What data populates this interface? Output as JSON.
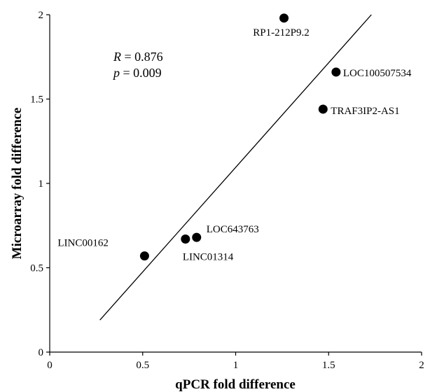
{
  "chart_data": {
    "type": "scatter",
    "xlabel": "qPCR fold difference",
    "ylabel": "Microarray fold difference",
    "xlim": [
      0,
      2
    ],
    "ylim": [
      0,
      2
    ],
    "xticks": [
      "0",
      "0.5",
      "1",
      "1.5",
      "2"
    ],
    "yticks": [
      "0",
      "0.5",
      "1",
      "1.5",
      "2"
    ],
    "grid": false,
    "points": [
      {
        "label": "RP1-212P9.2",
        "x": 1.26,
        "y": 1.98
      },
      {
        "label": "LOC100507534",
        "x": 1.54,
        "y": 1.66
      },
      {
        "label": "TRAF3IP2-AS1",
        "x": 1.47,
        "y": 1.44
      },
      {
        "label": "LOC643763",
        "x": 0.79,
        "y": 0.68
      },
      {
        "label": "LINC01314",
        "x": 0.73,
        "y": 0.67
      },
      {
        "label": "LINC00162",
        "x": 0.51,
        "y": 0.57
      }
    ],
    "fit_line": {
      "x1": 0.27,
      "y1": 0.19,
      "x2": 1.73,
      "y2": 2.0
    },
    "annotations": {
      "r_symbol": "R",
      "r_value": " = 0.876",
      "p_symbol": "p",
      "p_value": " = 0.009"
    }
  }
}
